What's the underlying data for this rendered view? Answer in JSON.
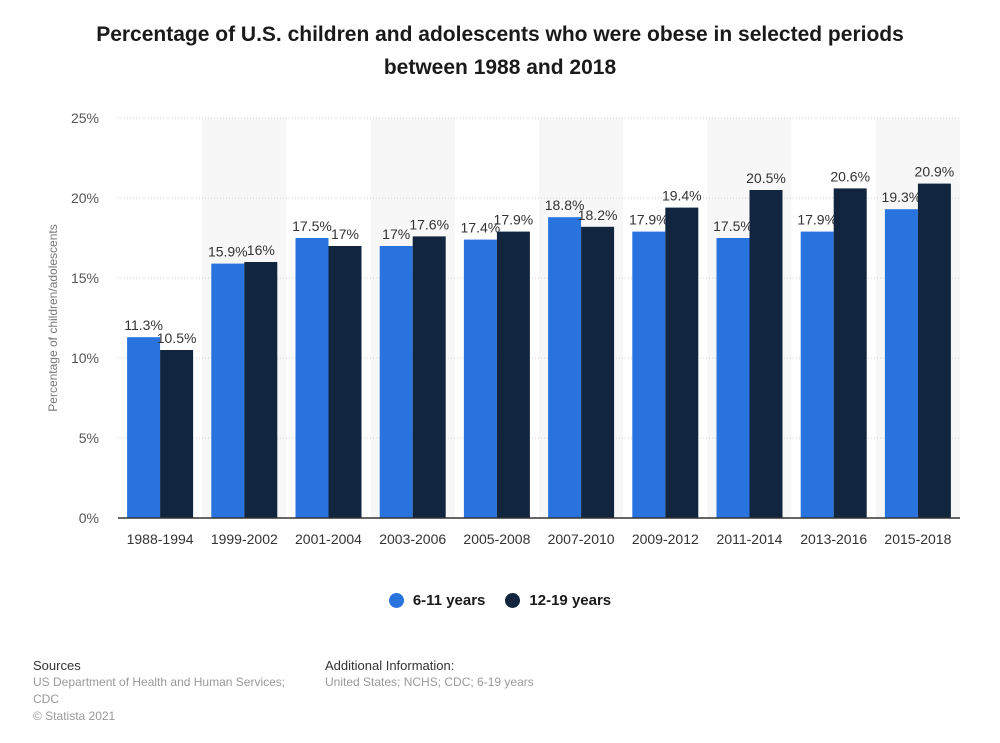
{
  "title_line1": "Percentage of U.S. children and adolescents who were obese in selected periods",
  "title_line2": "between 1988 and 2018",
  "colors": {
    "series1": "#2873de",
    "series2": "#11253f",
    "band": "#f7f7f7",
    "grid": "#cfcfcf"
  },
  "chart_data": {
    "type": "bar",
    "title": "Percentage of U.S. children and adolescents who were obese in selected periods between 1988 and 2018",
    "xlabel": "",
    "ylabel": "Percentage of children/adolescents",
    "ylim": [
      0,
      25
    ],
    "yticks": [
      0,
      5,
      10,
      15,
      20,
      25
    ],
    "ytick_labels": [
      "0%",
      "5%",
      "10%",
      "15%",
      "20%",
      "25%"
    ],
    "categories": [
      "1988-1994",
      "1999-2002",
      "2001-2004",
      "2003-2006",
      "2005-2008",
      "2007-2010",
      "2009-2012",
      "2011-2014",
      "2013-2016",
      "2015-2018"
    ],
    "series": [
      {
        "name": "6-11 years",
        "values": [
          11.3,
          15.9,
          17.5,
          17,
          17.4,
          18.8,
          17.9,
          17.5,
          17.9,
          19.3
        ],
        "labels": [
          "11.3%",
          "15.9%",
          "17.5%",
          "17%",
          "17.4%",
          "18.8%",
          "17.9%",
          "17.5%",
          "17.9%",
          "19.3%"
        ]
      },
      {
        "name": "12-19 years",
        "values": [
          10.5,
          16,
          17,
          17.6,
          17.9,
          18.2,
          19.4,
          20.5,
          20.6,
          20.9
        ],
        "labels": [
          "10.5%",
          "16%",
          "17%",
          "17.6%",
          "17.9%",
          "18.2%",
          "19.4%",
          "20.5%",
          "20.6%",
          "20.9%"
        ]
      }
    ],
    "grid": true,
    "legend": "bottom"
  },
  "footer": {
    "sources_label": "Sources",
    "sources_text": "US Department of Health and Human Services; CDC",
    "copyright": "© Statista 2021",
    "additional_label": "Additional Information:",
    "additional_text": "United States; NCHS; CDC; 6-19 years"
  }
}
